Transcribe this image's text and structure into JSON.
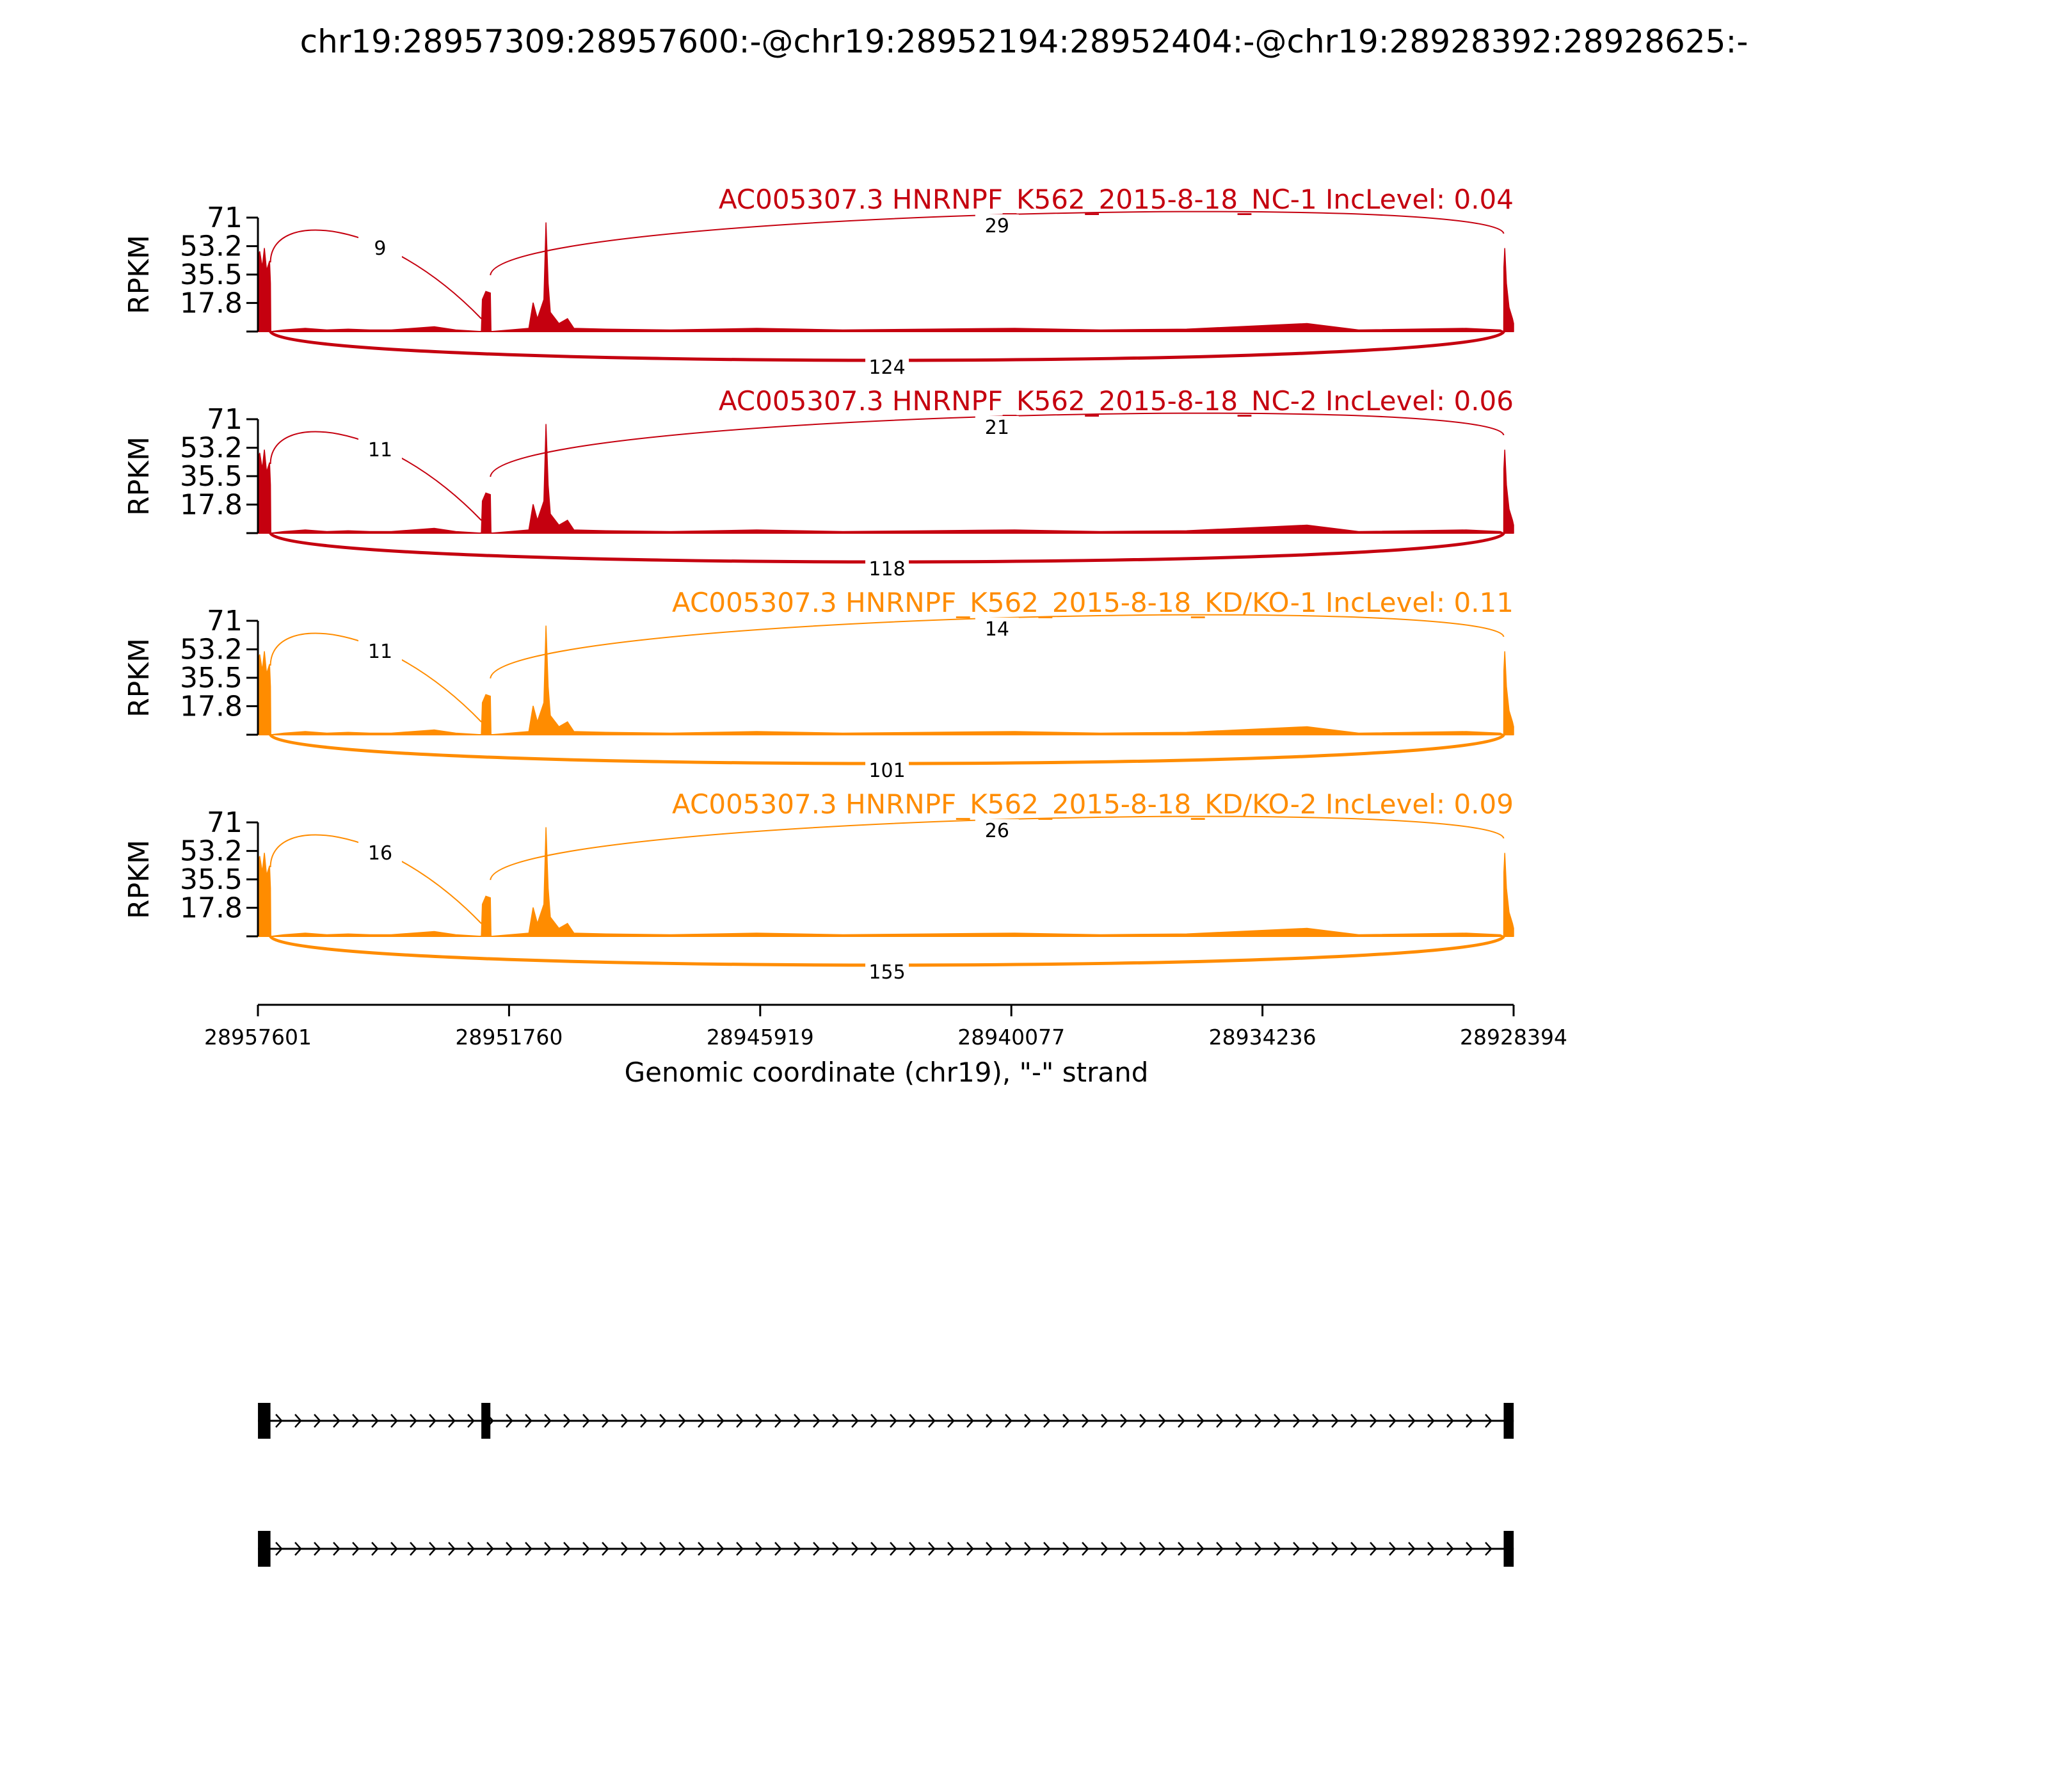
{
  "chart_data": {
    "type": "area",
    "title": "chr19:28957309:28957600:-@chr19:28952194:28952404:-@chr19:28928392:28928625:-",
    "xlabel": "Genomic coordinate (chr19), \"-\" strand",
    "ylabel": "RPKM",
    "xlim": [
      28957601,
      28928394
    ],
    "x_ticks": [
      "28957601",
      "28951760",
      "28945919",
      "28940077",
      "28934236",
      "28928394"
    ],
    "ylim": [
      0,
      71
    ],
    "y_ticks": [
      "71",
      "53.2",
      "35.5",
      "17.8"
    ],
    "y_tick_values": [
      71,
      53.2,
      35.5,
      17.8
    ],
    "exons": [
      {
        "start": 28957600,
        "end": 28957309
      },
      {
        "start": 28952404,
        "end": 28952194
      },
      {
        "start": 28928625,
        "end": 28928392
      }
    ],
    "coverage_profile": [
      {
        "x": 28957601,
        "y": 0
      },
      {
        "x": 28957600,
        "y": 45
      },
      {
        "x": 28957560,
        "y": 50
      },
      {
        "x": 28957500,
        "y": 40
      },
      {
        "x": 28957450,
        "y": 52
      },
      {
        "x": 28957400,
        "y": 38
      },
      {
        "x": 28957330,
        "y": 44
      },
      {
        "x": 28957309,
        "y": 30
      },
      {
        "x": 28957300,
        "y": 0
      },
      {
        "x": 28957000,
        "y": 1
      },
      {
        "x": 28956500,
        "y": 2
      },
      {
        "x": 28956000,
        "y": 1
      },
      {
        "x": 28955500,
        "y": 1.5
      },
      {
        "x": 28955000,
        "y": 1
      },
      {
        "x": 28954500,
        "y": 1
      },
      {
        "x": 28953500,
        "y": 3
      },
      {
        "x": 28953000,
        "y": 1
      },
      {
        "x": 28952404,
        "y": 0
      },
      {
        "x": 28952380,
        "y": 20
      },
      {
        "x": 28952300,
        "y": 25
      },
      {
        "x": 28952194,
        "y": 24
      },
      {
        "x": 28952180,
        "y": 0
      },
      {
        "x": 28951300,
        "y": 2
      },
      {
        "x": 28951200,
        "y": 18
      },
      {
        "x": 28951100,
        "y": 8
      },
      {
        "x": 28950950,
        "y": 20
      },
      {
        "x": 28950900,
        "y": 68
      },
      {
        "x": 28950850,
        "y": 30
      },
      {
        "x": 28950800,
        "y": 12
      },
      {
        "x": 28950600,
        "y": 5
      },
      {
        "x": 28950400,
        "y": 8
      },
      {
        "x": 28950250,
        "y": 2
      },
      {
        "x": 28949500,
        "y": 1.5
      },
      {
        "x": 28948000,
        "y": 1
      },
      {
        "x": 28946000,
        "y": 2
      },
      {
        "x": 28944000,
        "y": 1
      },
      {
        "x": 28942000,
        "y": 1.5
      },
      {
        "x": 28940000,
        "y": 2
      },
      {
        "x": 28938000,
        "y": 1
      },
      {
        "x": 28936000,
        "y": 1.5
      },
      {
        "x": 28933200,
        "y": 5
      },
      {
        "x": 28932000,
        "y": 1
      },
      {
        "x": 28929500,
        "y": 2
      },
      {
        "x": 28928700,
        "y": 1
      },
      {
        "x": 28928625,
        "y": 0
      },
      {
        "x": 28928620,
        "y": 40
      },
      {
        "x": 28928600,
        "y": 52
      },
      {
        "x": 28928560,
        "y": 30
      },
      {
        "x": 28928500,
        "y": 15
      },
      {
        "x": 28928420,
        "y": 8
      },
      {
        "x": 28928394,
        "y": 5
      }
    ],
    "tracks": [
      {
        "name": "AC005307.3 HNRNPF_K562_2015-8-18_NC-1 IncLevel: 0.04",
        "color": "#c5000f",
        "junctions": [
          {
            "from": 28957309,
            "to": 28952404,
            "count": "9",
            "side": "above"
          },
          {
            "from": 28952194,
            "to": 28928625,
            "count": "29",
            "side": "above"
          },
          {
            "from": 28957309,
            "to": 28928625,
            "count": "124",
            "side": "below"
          }
        ]
      },
      {
        "name": "AC005307.3 HNRNPF_K562_2015-8-18_NC-2 IncLevel: 0.06",
        "color": "#c5000f",
        "junctions": [
          {
            "from": 28957309,
            "to": 28952404,
            "count": "11",
            "side": "above"
          },
          {
            "from": 28952194,
            "to": 28928625,
            "count": "21",
            "side": "above"
          },
          {
            "from": 28957309,
            "to": 28928625,
            "count": "118",
            "side": "below"
          }
        ]
      },
      {
        "name": "AC005307.3 HNRNPF_K562_2015-8-18_KD/KO-1 IncLevel: 0.11",
        "color": "#ff8c00",
        "junctions": [
          {
            "from": 28957309,
            "to": 28952404,
            "count": "11",
            "side": "above"
          },
          {
            "from": 28952194,
            "to": 28928625,
            "count": "14",
            "side": "above"
          },
          {
            "from": 28957309,
            "to": 28928625,
            "count": "101",
            "side": "below"
          }
        ]
      },
      {
        "name": "AC005307.3 HNRNPF_K562_2015-8-18_KD/KO-2 IncLevel: 0.09",
        "color": "#ff8c00",
        "junctions": [
          {
            "from": 28957309,
            "to": 28952404,
            "count": "16",
            "side": "above"
          },
          {
            "from": 28952194,
            "to": 28928625,
            "count": "26",
            "side": "above"
          },
          {
            "from": 28957309,
            "to": 28928625,
            "count": "155",
            "side": "below"
          }
        ]
      }
    ],
    "isoforms": [
      {
        "exons": [
          [
            28957600,
            28957309
          ],
          [
            28952404,
            28952194
          ],
          [
            28928625,
            28928392
          ]
        ]
      },
      {
        "exons": [
          [
            28957600,
            28957309
          ],
          [
            28928625,
            28928392
          ]
        ]
      }
    ]
  }
}
